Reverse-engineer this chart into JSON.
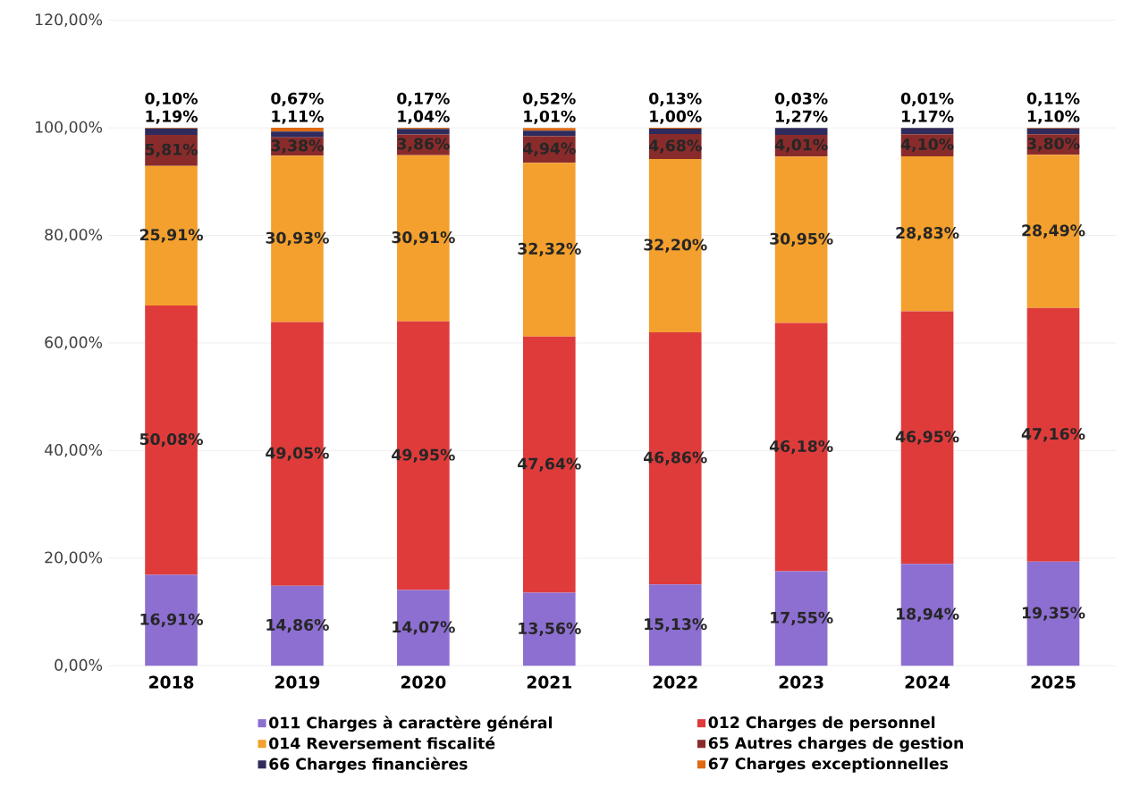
{
  "chart_data": {
    "type": "bar",
    "stacked": true,
    "categories": [
      "2018",
      "2019",
      "2020",
      "2021",
      "2022",
      "2023",
      "2024",
      "2025"
    ],
    "ylim": [
      0,
      120
    ],
    "yticks": [
      {
        "value": 0,
        "label": "0,00%"
      },
      {
        "value": 20,
        "label": "20,00%"
      },
      {
        "value": 40,
        "label": "40,00%"
      },
      {
        "value": 60,
        "label": "60,00%"
      },
      {
        "value": 80,
        "label": "80,00%"
      },
      {
        "value": 100,
        "label": "100,00%"
      },
      {
        "value": 120,
        "label": "120,00%"
      }
    ],
    "grid": "y",
    "legend": "bottom",
    "series": [
      {
        "name": "011 Charges à caractère général",
        "color": "#8d6fd1",
        "values": [
          16.91,
          14.86,
          14.07,
          13.56,
          15.13,
          17.55,
          18.94,
          19.35
        ],
        "value_labels": [
          "16,91%",
          "14,86%",
          "14,07%",
          "13,56%",
          "15,13%",
          "17,55%",
          "18,94%",
          "19,35%"
        ]
      },
      {
        "name": "012 Charges de personnel",
        "color": "#df3b3b",
        "values": [
          50.08,
          49.05,
          49.95,
          47.64,
          46.86,
          46.18,
          46.95,
          47.16
        ],
        "value_labels": [
          "50,08%",
          "49,05%",
          "49,95%",
          "47,64%",
          "46,86%",
          "46,18%",
          "46,95%",
          "47,16%"
        ]
      },
      {
        "name": "014 Reversement fiscalité",
        "color": "#f4a02e",
        "values": [
          25.91,
          30.93,
          30.91,
          32.32,
          32.2,
          30.95,
          28.83,
          28.49
        ],
        "value_labels": [
          "25,91%",
          "30,93%",
          "30,91%",
          "32,32%",
          "32,20%",
          "30,95%",
          "28,83%",
          "28,49%"
        ]
      },
      {
        "name": "65 Autres charges de gestion",
        "color": "#8a2b2b",
        "values": [
          5.81,
          3.38,
          3.86,
          4.94,
          4.68,
          4.01,
          4.1,
          3.8
        ],
        "value_labels": [
          "5,81%",
          "3,38%",
          "3,86%",
          "4,94%",
          "4,68%",
          "4,01%",
          "4,10%",
          "3,80%"
        ]
      },
      {
        "name": "66 Charges financières",
        "color": "#2f2b5c",
        "values": [
          1.19,
          1.11,
          1.04,
          1.01,
          1.0,
          1.27,
          1.17,
          1.1
        ],
        "value_labels": [
          "1,19%",
          "1,11%",
          "1,04%",
          "1,01%",
          "1,00%",
          "1,27%",
          "1,17%",
          "1,10%"
        ]
      },
      {
        "name": "67 Charges exceptionnelles",
        "color": "#e06a12",
        "values": [
          0.1,
          0.67,
          0.17,
          0.52,
          0.13,
          0.03,
          0.01,
          0.11
        ],
        "value_labels": [
          "0,10%",
          "0,67%",
          "0,17%",
          "0,52%",
          "0,13%",
          "0,03%",
          "0,01%",
          "0,11%"
        ]
      }
    ]
  }
}
